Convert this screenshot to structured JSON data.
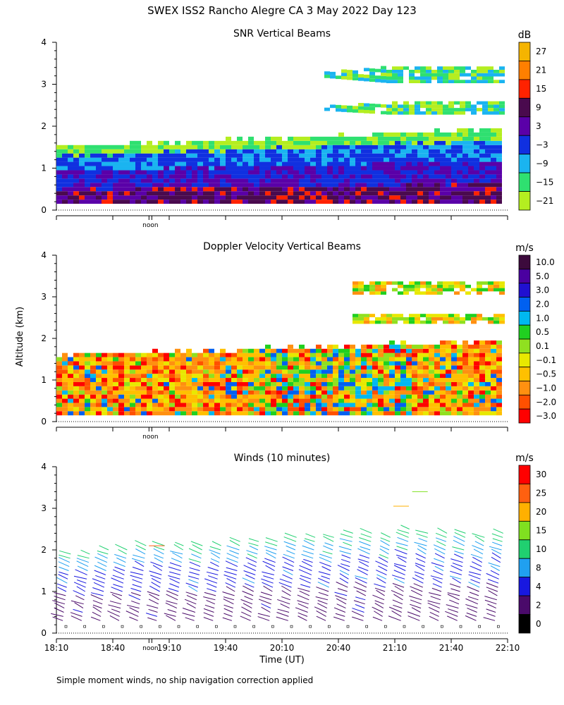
{
  "figure": {
    "title": "SWEX ISS2 Rancho Alegre CA   3 May 2022 Day 123",
    "ylabel": "Altitude (km)",
    "xlabel": "Time (UT)",
    "footnote": "Simple moment winds, no ship navigation correction applied",
    "noon_label": "noon"
  },
  "chart_data": [
    {
      "type": "heatmap",
      "title": "SNR Vertical Beams",
      "ylabel": "Altitude (km)",
      "ylim": [
        0,
        4
      ],
      "yticks": [
        0,
        1,
        2,
        3,
        4
      ],
      "xlim": [
        "18:10",
        "22:10"
      ],
      "colorbar_unit": "dB",
      "colorbar_labels": [
        "27",
        "21",
        "15",
        "9",
        "3",
        "−3",
        "−9",
        "−15",
        "−21"
      ],
      "colorbar_colors": [
        "#f5b400",
        "#ff7f00",
        "#ff2200",
        "#4a0a4e",
        "#5a00a8",
        "#1030e0",
        "#1ab4f0",
        "#2fe070",
        "#b4ee20"
      ],
      "description": "Boundary layer echo from ~0.2 to ~1.9 km, strongest (purple/blue) below 1 km; thin green/blue layers near 2.5 km and 3.2 km after 20:50"
    },
    {
      "type": "heatmap",
      "title": "Doppler Velocity Vertical Beams",
      "ylabel": "Altitude (km)",
      "ylim": [
        0,
        4
      ],
      "yticks": [
        0,
        1,
        2,
        3,
        4
      ],
      "xlim": [
        "18:10",
        "22:10"
      ],
      "colorbar_unit": "m/s",
      "colorbar_labels": [
        "10.0",
        "5.0",
        "3.0",
        "2.0",
        "1.0",
        "0.5",
        "0.1",
        "−0.1",
        "−0.5",
        "−1.0",
        "−2.0",
        "−3.0"
      ],
      "colorbar_colors": [
        "#3c0a3c",
        "#4a00a0",
        "#2010d0",
        "#0060f0",
        "#00b8f0",
        "#20d020",
        "#90e020",
        "#e8e800",
        "#ffc000",
        "#ff9010",
        "#ff5000",
        "#ff0000"
      ],
      "description": "Mostly orange/yellow (weak downward) velocities in the boundary layer with green/blue updraft plumes mid-afternoon"
    },
    {
      "type": "scatter",
      "title": "Winds (10 minutes)",
      "ylabel": "Altitude (km)",
      "xlabel": "Time (UT)",
      "ylim": [
        0,
        4
      ],
      "yticks": [
        0,
        1,
        2,
        3,
        4
      ],
      "xticks": [
        "18:10",
        "18:40",
        "19:10",
        "19:40",
        "20:10",
        "20:40",
        "21:10",
        "21:40",
        "22:10"
      ],
      "colorbar_unit": "m/s",
      "colorbar_labels": [
        "30",
        "25",
        "20",
        "15",
        "10",
        "8",
        "4",
        "2",
        "0"
      ],
      "colorbar_colors": [
        "#ff0000",
        "#ff6010",
        "#ffb000",
        "#80e020",
        "#20d070",
        "#20a0f0",
        "#1818e0",
        "#4a0a6a",
        "#000000"
      ],
      "profile_times": [
        "18:10",
        "18:20",
        "18:30",
        "18:40",
        "18:50",
        "19:00",
        "19:10",
        "19:20",
        "19:30",
        "19:40",
        "19:50",
        "20:00",
        "20:10",
        "20:20",
        "20:30",
        "20:40",
        "20:50",
        "21:00",
        "21:10",
        "21:20",
        "21:30",
        "21:40",
        "21:50",
        "22:00"
      ],
      "profile_tops_km": [
        2.0,
        1.95,
        2.05,
        2.1,
        2.15,
        2.2,
        2.2,
        2.15,
        2.2,
        2.25,
        2.3,
        2.3,
        2.35,
        2.4,
        2.4,
        2.45,
        2.45,
        2.4,
        2.55,
        2.5,
        2.45,
        2.5,
        2.35,
        2.5
      ],
      "description": "Wind barbs from ~0.3 km to ~2.3 km; mostly 2–8 m/s (purple/blue) near surface increasing to 10–15 m/s aloft; isolated 20–25 m/s barbs near 3–3.5 km"
    }
  ]
}
